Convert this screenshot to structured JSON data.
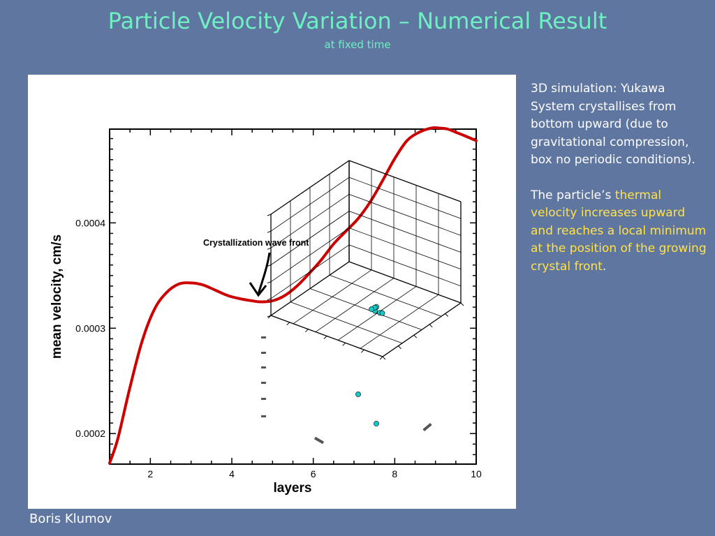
{
  "slide": {
    "title": "Particle Velocity Variation – Numerical Result",
    "subtitle": "at fixed time",
    "author": "Boris Klumov"
  },
  "description": {
    "paragraph1": "3D simulation: Yukawa System crystallises from bottom upward (due to gravitational compression, box no periodic conditions).",
    "paragraph2_plain": "The particle’s ",
    "paragraph2_highlight": "thermal velocity increases upward and reaches a local minimum at the position of the growing crystal front",
    "paragraph2_end": "."
  },
  "colors": {
    "background": "#5f76a1",
    "title": "#6ef0c2",
    "highlight": "#ffe24a",
    "curve": "#cc0000",
    "particles": "#14c8c8"
  },
  "chart_data": {
    "type": "line",
    "xlabel": "layers",
    "ylabel": "mean velocity, cm/s",
    "xlim": [
      1,
      10
    ],
    "ylim": [
      0.000171,
      0.000489
    ],
    "x_ticks": [
      "2",
      "4",
      "6",
      "8",
      "10"
    ],
    "y_ticks": [
      "0.0002",
      "0.0003",
      "0.0004"
    ],
    "grid": false,
    "annotation": "Crystallization wave front",
    "annotation_target": {
      "x": 4.55,
      "y": 0.000333
    },
    "inset": "3D scatter plot of particle positions",
    "series": [
      {
        "x": [
          1.0,
          1.2,
          1.5,
          1.8,
          2.1,
          2.4,
          2.7,
          3.0,
          3.3,
          3.6,
          3.9,
          4.2,
          4.5,
          4.7,
          5.0,
          5.3,
          5.6,
          5.9,
          6.2,
          6.5,
          6.8,
          7.1,
          7.4,
          7.7,
          8.0,
          8.3,
          8.6,
          8.9,
          9.1,
          9.3,
          9.5,
          9.7,
          10.0
        ],
        "y": [
          0.000172,
          0.000195,
          0.000244,
          0.000288,
          0.000318,
          0.000334,
          0.000342,
          0.000343,
          0.000341,
          0.000336,
          0.000331,
          0.000328,
          0.000326,
          0.000325,
          0.000326,
          0.000331,
          0.00034,
          0.000352,
          0.000365,
          0.00038,
          0.000392,
          0.000404,
          0.00042,
          0.00044,
          0.000461,
          0.000478,
          0.000486,
          0.00049,
          0.00049,
          0.000489,
          0.000486,
          0.000483,
          0.000478
        ]
      }
    ]
  }
}
